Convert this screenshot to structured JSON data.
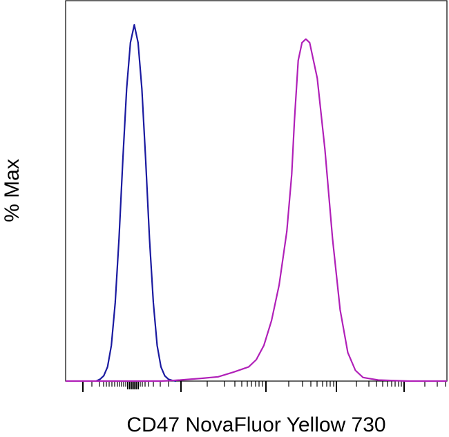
{
  "chart_data": {
    "type": "line",
    "title": "",
    "xlabel": "CD47 NovaFluor Yellow 730",
    "ylabel": "% Max",
    "x_scale": "log",
    "grid": false,
    "legend": "none",
    "xlim": [
      0,
      100
    ],
    "ylim": [
      0,
      100
    ],
    "series": [
      {
        "color": "#1a1aa0",
        "x": [
          8,
          9,
          10,
          11,
          12,
          13,
          14,
          15,
          16,
          17,
          18,
          19,
          20,
          21,
          22,
          23,
          24,
          25,
          26,
          27,
          28,
          29
        ],
        "y": [
          0,
          0.5,
          1.5,
          4,
          10,
          22,
          40,
          62,
          82,
          95,
          100,
          95,
          82,
          62,
          40,
          22,
          10,
          4,
          1.5,
          0.5,
          0.2,
          0
        ]
      },
      {
        "color": "#b020b8",
        "x": [
          0,
          10,
          25,
          30,
          36,
          40,
          44,
          48,
          50,
          52,
          54,
          56,
          58,
          59.3,
          60,
          61,
          62,
          63,
          64,
          66,
          68,
          70,
          72,
          74,
          76,
          78,
          82,
          90,
          100
        ],
        "y": [
          0,
          0,
          0,
          0.3,
          0.8,
          1.2,
          2.5,
          4,
          6,
          10,
          17,
          27,
          42,
          58,
          73,
          90,
          95,
          96,
          95,
          85,
          65,
          40,
          20,
          8,
          3,
          1,
          0.3,
          0,
          0
        ]
      }
    ]
  }
}
